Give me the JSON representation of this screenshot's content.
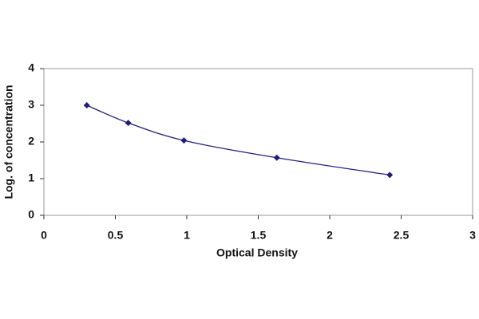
{
  "chart_data": {
    "type": "scatter",
    "x_label": "Optical Density",
    "y_label": "Log. of concentration",
    "x": [
      0.3,
      0.59,
      0.98,
      1.63,
      2.42
    ],
    "series": [
      {
        "color": "#1f1f7a",
        "values": [
          3.0,
          2.52,
          2.04,
          1.57,
          1.1
        ]
      }
    ],
    "xlim": [
      0,
      3
    ],
    "xticks": [
      0,
      0.5,
      1,
      1.5,
      2,
      2.5,
      3
    ],
    "ylim": [
      0,
      4
    ],
    "yticks": [
      0,
      1,
      2,
      3,
      4
    ],
    "smooth": true
  }
}
